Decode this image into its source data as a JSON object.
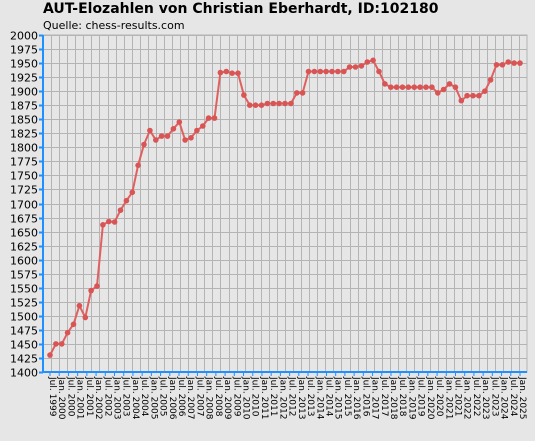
{
  "title": "AUT-Elozahlen von Christian Eberhardt, ID:102180",
  "subtitle": "Quelle: chess-results.com",
  "colors": {
    "line": "#e06060",
    "marker": "#d95555",
    "grid": "#b4b4b4",
    "axis": "#1e90ff",
    "background": "#e6e6e6"
  },
  "chart_data": {
    "type": "line",
    "title": "AUT-Elozahlen von Christian Eberhardt, ID:102180",
    "ylim": [
      1400,
      2000
    ],
    "ytick_step": 25,
    "grid": true,
    "x_tick_labels": [
      "Jul. 1999",
      "Jan. 2000",
      "Jul. 2000",
      "Jan. 2001",
      "Jul. 2001",
      "Jan. 2002",
      "Jul. 2002",
      "Jan. 2003",
      "Jul. 2003",
      "Jan. 2004",
      "Jul. 2004",
      "Jan. 2005",
      "Jul. 2005",
      "Jan. 2006",
      "Jul. 2006",
      "Jan. 2007",
      "Jul. 2007",
      "Jan. 2008",
      "Jul. 2008",
      "Jan. 2009",
      "Jul. 2009",
      "Jan. 2010",
      "Jul. 2010",
      "Jan. 2011",
      "Jul. 2011",
      "Jan. 2012",
      "Jul. 2012",
      "Jan. 2013",
      "Jul. 2013",
      "Jan. 2014",
      "Jul. 2014",
      "Jan. 2015",
      "Jul. 2015",
      "Jan. 2016",
      "Jul. 2016",
      "Jan. 2017",
      "Jul. 2017",
      "Jan. 2018",
      "Jul. 2018",
      "Jan. 2019",
      "Jul. 2019",
      "Jan. 2020",
      "Jul. 2020",
      "Jan. 2021",
      "Jul. 2021",
      "Jan. 2022",
      "Jul. 2022",
      "Jan. 2023",
      "Jul. 2023",
      "Jan. 2024",
      "Jul. 2024",
      "Jan. 2025"
    ],
    "values": [
      1430,
      1450,
      1450,
      1470,
      1485,
      1518,
      1497,
      1545,
      1553,
      1662,
      1668,
      1667,
      1688,
      1705,
      1720,
      1768,
      1805,
      1830,
      1813,
      1820,
      1820,
      1833,
      1845,
      1813,
      1817,
      1830,
      1838,
      1852,
      1852,
      1933,
      1935,
      1932,
      1932,
      1893,
      1875,
      1875,
      1875,
      1878,
      1878,
      1878,
      1878,
      1878,
      1897,
      1897,
      1935,
      1935,
      1935,
      1935,
      1935,
      1935,
      1935,
      1943,
      1943,
      1945,
      1952,
      1955,
      1935,
      1913,
      1907,
      1907,
      1907,
      1907,
      1907,
      1907,
      1907,
      1907,
      1897,
      1903,
      1913,
      1907,
      1883,
      1892,
      1892,
      1892,
      1900,
      1920,
      1947,
      1947,
      1952,
      1950,
      1950
    ]
  }
}
